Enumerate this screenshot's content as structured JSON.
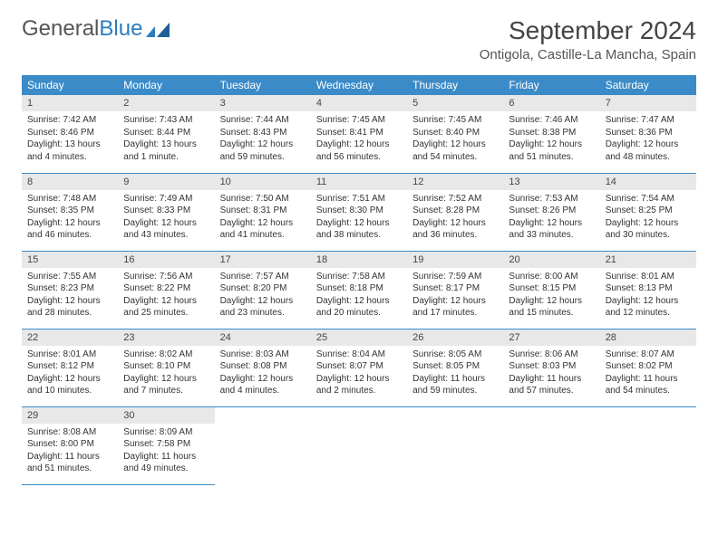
{
  "logo": {
    "text1": "General",
    "text2": "Blue"
  },
  "title": "September 2024",
  "location": "Ontigola, Castille-La Mancha, Spain",
  "colors": {
    "header_bg": "#3b8bc8",
    "header_text": "#ffffff",
    "daynum_bg": "#e8e8e8",
    "body_text": "#333333",
    "border": "#3b8bc8",
    "logo_gray": "#555555",
    "logo_blue": "#2b7bbf"
  },
  "weekdays": [
    "Sunday",
    "Monday",
    "Tuesday",
    "Wednesday",
    "Thursday",
    "Friday",
    "Saturday"
  ],
  "weeks": [
    [
      {
        "n": "1",
        "sr": "7:42 AM",
        "ss": "8:46 PM",
        "dl": "13 hours and 4 minutes."
      },
      {
        "n": "2",
        "sr": "7:43 AM",
        "ss": "8:44 PM",
        "dl": "13 hours and 1 minute."
      },
      {
        "n": "3",
        "sr": "7:44 AM",
        "ss": "8:43 PM",
        "dl": "12 hours and 59 minutes."
      },
      {
        "n": "4",
        "sr": "7:45 AM",
        "ss": "8:41 PM",
        "dl": "12 hours and 56 minutes."
      },
      {
        "n": "5",
        "sr": "7:45 AM",
        "ss": "8:40 PM",
        "dl": "12 hours and 54 minutes."
      },
      {
        "n": "6",
        "sr": "7:46 AM",
        "ss": "8:38 PM",
        "dl": "12 hours and 51 minutes."
      },
      {
        "n": "7",
        "sr": "7:47 AM",
        "ss": "8:36 PM",
        "dl": "12 hours and 48 minutes."
      }
    ],
    [
      {
        "n": "8",
        "sr": "7:48 AM",
        "ss": "8:35 PM",
        "dl": "12 hours and 46 minutes."
      },
      {
        "n": "9",
        "sr": "7:49 AM",
        "ss": "8:33 PM",
        "dl": "12 hours and 43 minutes."
      },
      {
        "n": "10",
        "sr": "7:50 AM",
        "ss": "8:31 PM",
        "dl": "12 hours and 41 minutes."
      },
      {
        "n": "11",
        "sr": "7:51 AM",
        "ss": "8:30 PM",
        "dl": "12 hours and 38 minutes."
      },
      {
        "n": "12",
        "sr": "7:52 AM",
        "ss": "8:28 PM",
        "dl": "12 hours and 36 minutes."
      },
      {
        "n": "13",
        "sr": "7:53 AM",
        "ss": "8:26 PM",
        "dl": "12 hours and 33 minutes."
      },
      {
        "n": "14",
        "sr": "7:54 AM",
        "ss": "8:25 PM",
        "dl": "12 hours and 30 minutes."
      }
    ],
    [
      {
        "n": "15",
        "sr": "7:55 AM",
        "ss": "8:23 PM",
        "dl": "12 hours and 28 minutes."
      },
      {
        "n": "16",
        "sr": "7:56 AM",
        "ss": "8:22 PM",
        "dl": "12 hours and 25 minutes."
      },
      {
        "n": "17",
        "sr": "7:57 AM",
        "ss": "8:20 PM",
        "dl": "12 hours and 23 minutes."
      },
      {
        "n": "18",
        "sr": "7:58 AM",
        "ss": "8:18 PM",
        "dl": "12 hours and 20 minutes."
      },
      {
        "n": "19",
        "sr": "7:59 AM",
        "ss": "8:17 PM",
        "dl": "12 hours and 17 minutes."
      },
      {
        "n": "20",
        "sr": "8:00 AM",
        "ss": "8:15 PM",
        "dl": "12 hours and 15 minutes."
      },
      {
        "n": "21",
        "sr": "8:01 AM",
        "ss": "8:13 PM",
        "dl": "12 hours and 12 minutes."
      }
    ],
    [
      {
        "n": "22",
        "sr": "8:01 AM",
        "ss": "8:12 PM",
        "dl": "12 hours and 10 minutes."
      },
      {
        "n": "23",
        "sr": "8:02 AM",
        "ss": "8:10 PM",
        "dl": "12 hours and 7 minutes."
      },
      {
        "n": "24",
        "sr": "8:03 AM",
        "ss": "8:08 PM",
        "dl": "12 hours and 4 minutes."
      },
      {
        "n": "25",
        "sr": "8:04 AM",
        "ss": "8:07 PM",
        "dl": "12 hours and 2 minutes."
      },
      {
        "n": "26",
        "sr": "8:05 AM",
        "ss": "8:05 PM",
        "dl": "11 hours and 59 minutes."
      },
      {
        "n": "27",
        "sr": "8:06 AM",
        "ss": "8:03 PM",
        "dl": "11 hours and 57 minutes."
      },
      {
        "n": "28",
        "sr": "8:07 AM",
        "ss": "8:02 PM",
        "dl": "11 hours and 54 minutes."
      }
    ],
    [
      {
        "n": "29",
        "sr": "8:08 AM",
        "ss": "8:00 PM",
        "dl": "11 hours and 51 minutes."
      },
      {
        "n": "30",
        "sr": "8:09 AM",
        "ss": "7:58 PM",
        "dl": "11 hours and 49 minutes."
      },
      null,
      null,
      null,
      null,
      null
    ]
  ],
  "labels": {
    "sunrise": "Sunrise: ",
    "sunset": "Sunset: ",
    "daylight": "Daylight: "
  }
}
